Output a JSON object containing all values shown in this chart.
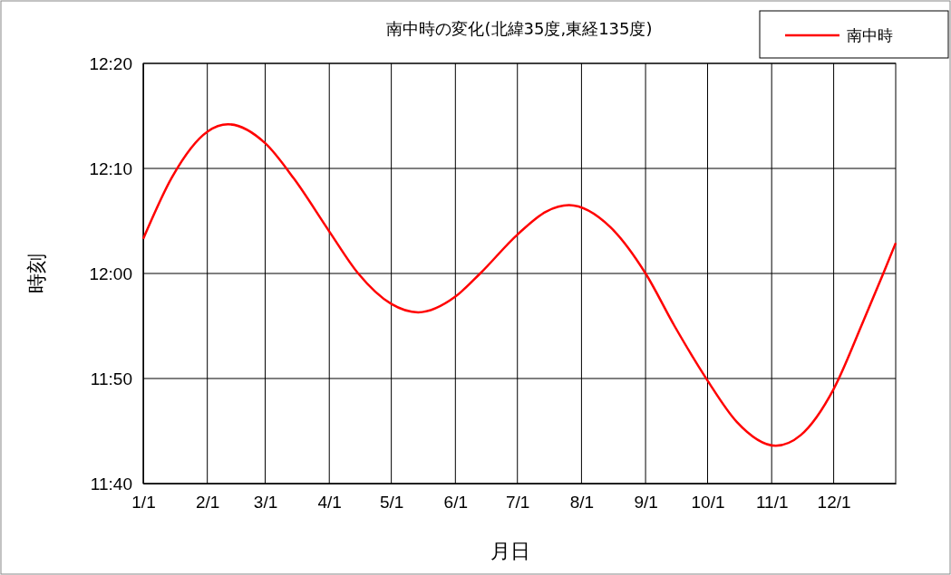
{
  "chart_data": {
    "type": "line",
    "title": "南中時の変化(北緯35度,東経135度)",
    "xlabel": "月日",
    "ylabel": "時刻",
    "x": [
      "--01-01",
      "--01-15",
      "--02-01",
      "--02-11",
      "--03-01",
      "--03-15",
      "--04-01",
      "--04-15",
      "--05-01",
      "--05-14",
      "--06-01",
      "--06-13",
      "--07-01",
      "--07-15",
      "--07-26",
      "--08-15",
      "--09-01",
      "--09-15",
      "--10-01",
      "--10-15",
      "--11-03",
      "--11-15",
      "--12-01",
      "--12-15",
      "--12-25",
      "--12-31"
    ],
    "series": [
      {
        "name": "南中時",
        "color": "#ff0000",
        "values": [
          723.3,
          729.2,
          733.5,
          734.2,
          732.4,
          729.0,
          724.0,
          720.0,
          717.1,
          716.3,
          717.8,
          720.0,
          723.7,
          725.9,
          726.5,
          724.4,
          720.0,
          715.0,
          709.8,
          705.9,
          703.6,
          704.6,
          709.0,
          715.3,
          720.0,
          722.9
        ]
      }
    ],
    "xlim": [
      "--01-01",
      "--12-31"
    ],
    "xticks": [
      {
        "value": "--01-01",
        "label": "1/1"
      },
      {
        "value": "--02-01",
        "label": "2/1"
      },
      {
        "value": "--03-01",
        "label": "3/1"
      },
      {
        "value": "--04-01",
        "label": "4/1"
      },
      {
        "value": "--05-01",
        "label": "5/1"
      },
      {
        "value": "--06-01",
        "label": "6/1"
      },
      {
        "value": "--07-01",
        "label": "7/1"
      },
      {
        "value": "--08-01",
        "label": "8/1"
      },
      {
        "value": "--09-01",
        "label": "9/1"
      },
      {
        "value": "--10-01",
        "label": "10/1"
      },
      {
        "value": "--11-01",
        "label": "11/1"
      },
      {
        "value": "--12-01",
        "label": "12/1"
      }
    ],
    "ylim": [
      700,
      740
    ],
    "yticks": [
      {
        "value": 700,
        "label": "11:40"
      },
      {
        "value": 710,
        "label": "11:50"
      },
      {
        "value": 720,
        "label": "12:00"
      },
      {
        "value": 730,
        "label": "12:10"
      },
      {
        "value": 740,
        "label": "12:20"
      }
    ],
    "grid": true,
    "legend": "top right",
    "marker": "none",
    "line_style": "solid"
  }
}
